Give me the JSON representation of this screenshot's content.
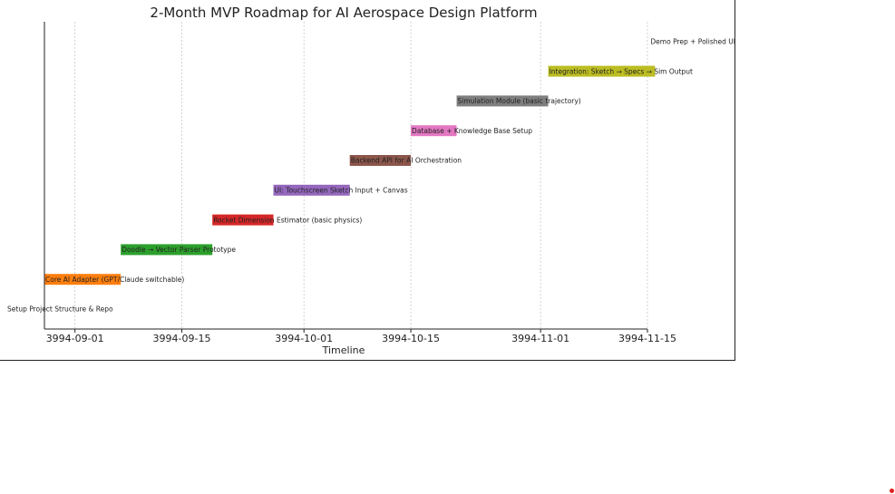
{
  "chart_data": {
    "type": "bar",
    "orientation": "horizontal",
    "title": "2-Month MVP Roadmap for AI Aerospace Design Platform",
    "xlabel": "Timeline",
    "ylabel": "",
    "grid": "x-only",
    "x_ticks": [
      "3994-09-01",
      "3994-09-15",
      "3994-10-01",
      "3994-10-15",
      "3994-11-01",
      "3994-11-15"
    ],
    "xlim": [
      "3994-08-28",
      "3994-11-15"
    ],
    "tasks": [
      {
        "name": "Setup Project Structure & Repo",
        "start": "3994-08-28",
        "end": "3994-08-28",
        "color": "#1f77b4"
      },
      {
        "name": "Core AI Adapter (GPT/Claude switchable)",
        "start": "3994-08-28",
        "end": "3994-09-07",
        "color": "#ff7f0e"
      },
      {
        "name": "Doodle → Vector Parser Prototype",
        "start": "3994-09-07",
        "end": "3994-09-19",
        "color": "#2ca02c"
      },
      {
        "name": "Rocket Dimension Estimator (basic physics)",
        "start": "3994-09-19",
        "end": "3994-09-27",
        "color": "#d62728"
      },
      {
        "name": "UI: Touchscreen Sketch Input + Canvas",
        "start": "3994-09-27",
        "end": "3994-10-07",
        "color": "#9467bd"
      },
      {
        "name": "Backend API for AI Orchestration",
        "start": "3994-10-07",
        "end": "3994-10-15",
        "color": "#8c564b"
      },
      {
        "name": "Database + Knowledge Base Setup",
        "start": "3994-10-15",
        "end": "3994-10-21",
        "color": "#e377c2"
      },
      {
        "name": "Simulation Module (basic trajectory)",
        "start": "3994-10-21",
        "end": "3994-11-02",
        "color": "#7f7f7f"
      },
      {
        "name": "Integration: Sketch → Specs → Sim Output",
        "start": "3994-11-02",
        "end": "3994-11-16",
        "color": "#bcbd22"
      },
      {
        "name": "Demo Prep + Polished UI",
        "start": "3994-11-16",
        "end": "3994-11-16",
        "color": "#17becf"
      }
    ]
  }
}
